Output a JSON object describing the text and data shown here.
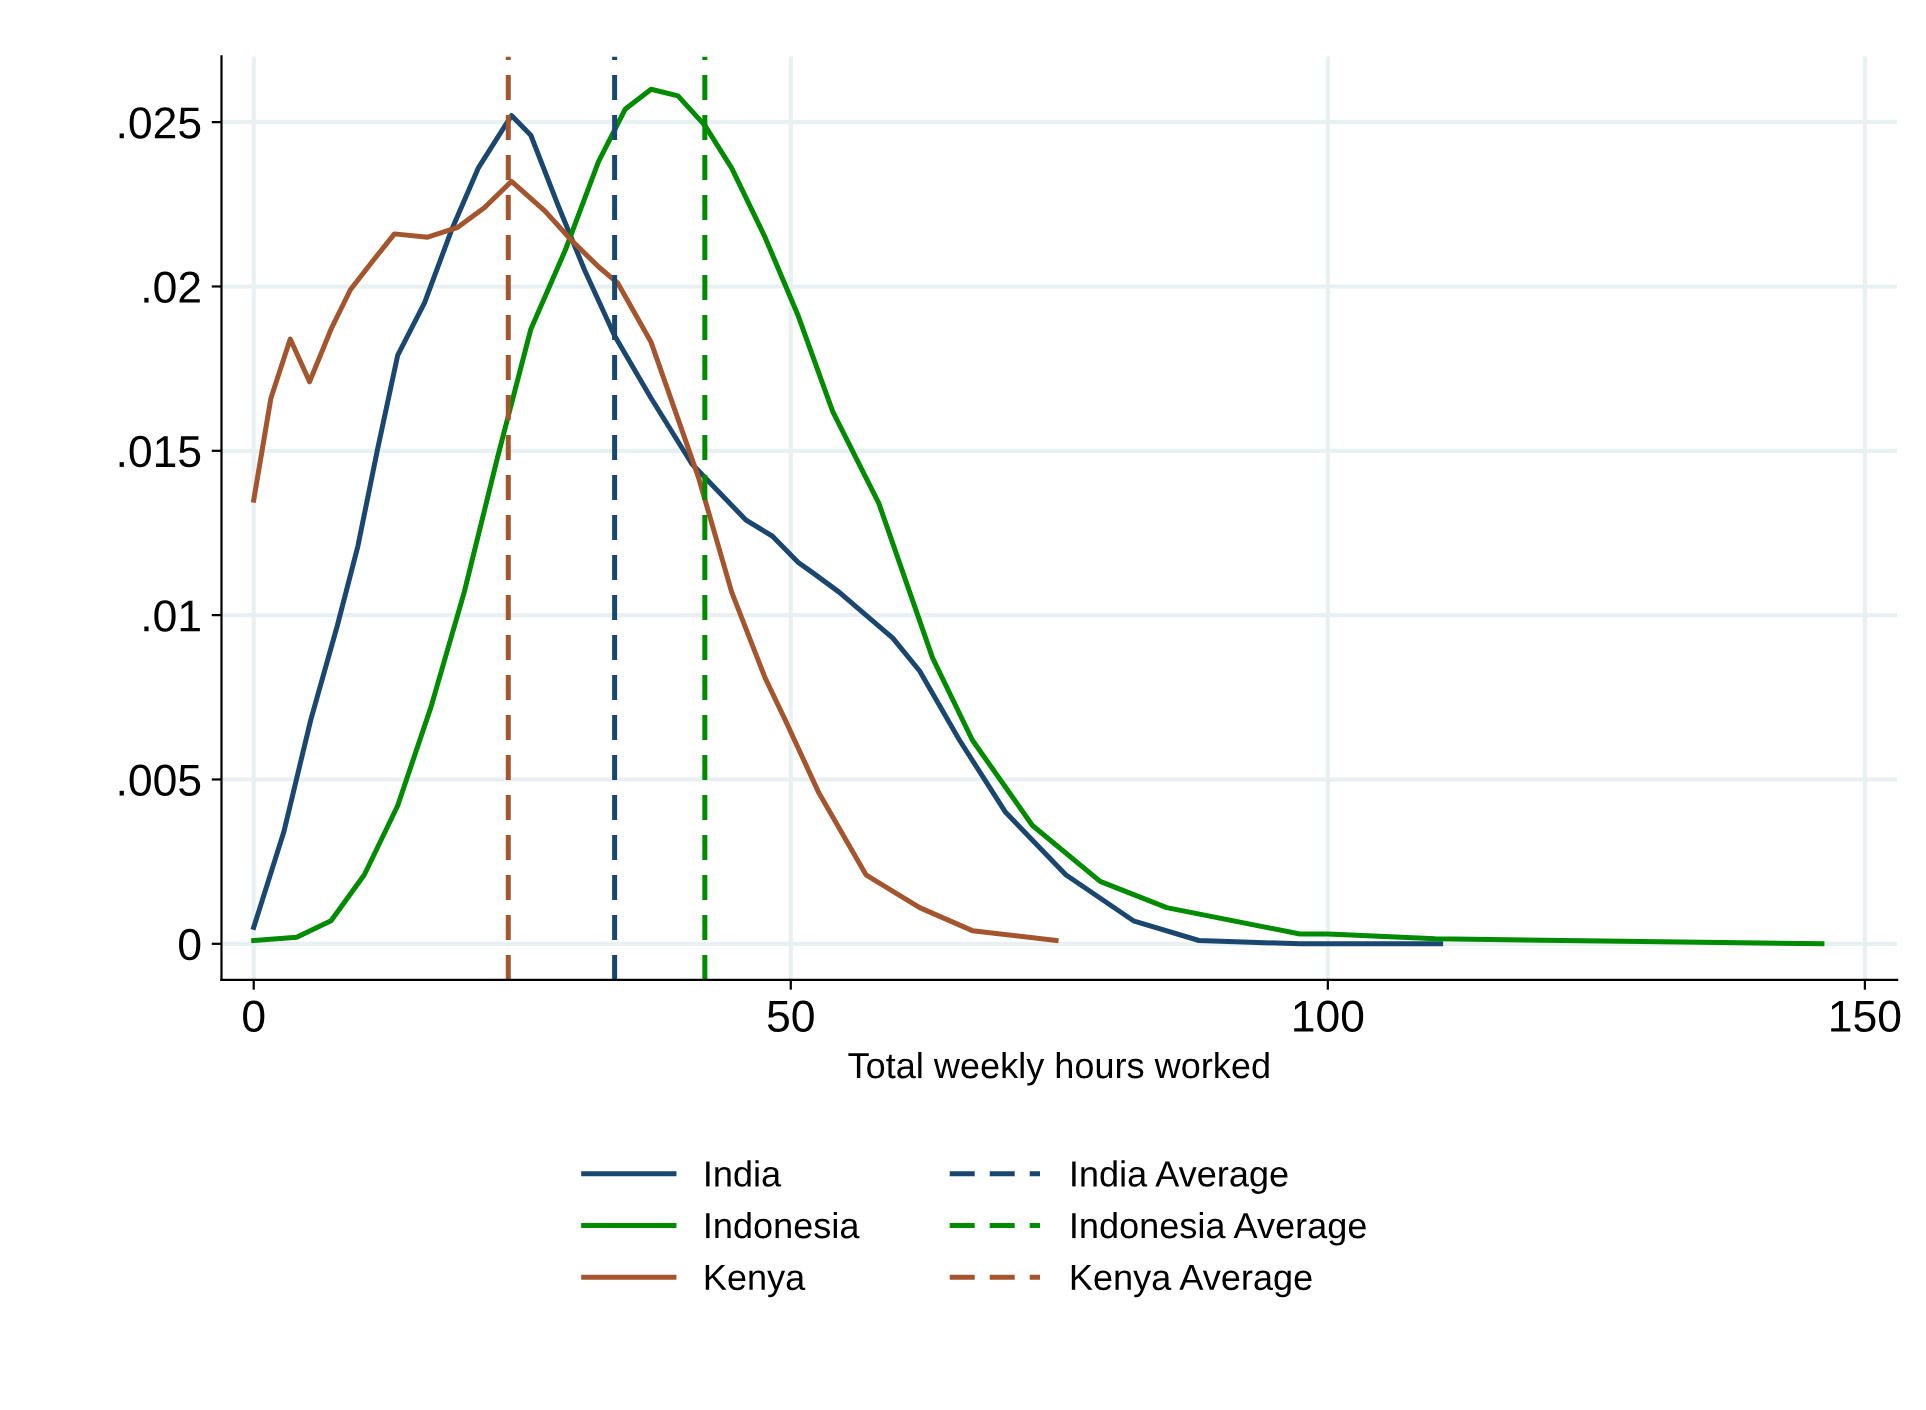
{
  "chart_data": {
    "type": "line",
    "xlabel": "Total weekly hours worked",
    "xlim": [
      -3,
      153
    ],
    "ylim": [
      -0.0011,
      0.027
    ],
    "xticks": [
      0,
      50,
      100,
      150
    ],
    "yticks": [
      {
        "value": 0,
        "label": "0"
      },
      {
        "value": 0.005,
        "label": ".005"
      },
      {
        "value": 0.01,
        "label": ".01"
      },
      {
        "value": 0.015,
        "label": ".015"
      },
      {
        "value": 0.02,
        "label": ".02"
      },
      {
        "value": 0.025,
        "label": ".025"
      }
    ],
    "grid": true,
    "legend": "bottom",
    "line_style": "solid",
    "series": [
      {
        "name": "India",
        "color": "#1a476f",
        "x": [
          0,
          2.8,
          5.3,
          7.8,
          9.7,
          11.5,
          13.4,
          15.9,
          18.4,
          20.9,
          24,
          25.8,
          28.3,
          30.8,
          33.6,
          37,
          40.8,
          45.8,
          48.3,
          50.7,
          52,
          54.5,
          59.5,
          62,
          65.7,
          70,
          75.6,
          81.9,
          88,
          97.4,
          110.5
        ],
        "values": [
          0.0005,
          0.0034,
          0.0068,
          0.0097,
          0.0121,
          0.015,
          0.0179,
          0.0195,
          0.0217,
          0.0236,
          0.0252,
          0.0246,
          0.0225,
          0.0205,
          0.0185,
          0.0166,
          0.0146,
          0.0129,
          0.0124,
          0.0116,
          0.0113,
          0.0107,
          0.0093,
          0.0083,
          0.0062,
          0.004,
          0.0021,
          0.0007,
          0.0001,
          0,
          0
        ]
      },
      {
        "name": "Indonesia",
        "color": "#008b00",
        "x": [
          0,
          4,
          7.2,
          10.3,
          13.4,
          16.5,
          19.6,
          22.7,
          25.8,
          29,
          32.1,
          34.6,
          37,
          39.5,
          42,
          44.5,
          47.6,
          50.7,
          53.9,
          58.2,
          63.2,
          66.9,
          72.5,
          78.8,
          85,
          97.4,
          100,
          110,
          146
        ],
        "values": [
          0.0001,
          0.0002,
          0.0007,
          0.0021,
          0.0042,
          0.0072,
          0.0107,
          0.0148,
          0.0187,
          0.0211,
          0.0238,
          0.0254,
          0.026,
          0.0258,
          0.0249,
          0.0236,
          0.0215,
          0.0191,
          0.0162,
          0.0134,
          0.0087,
          0.0062,
          0.0036,
          0.0019,
          0.0011,
          0.0003,
          0.0003,
          0.00015,
          0
        ]
      },
      {
        "name": "Kenya",
        "color": "#a5552d",
        "x": [
          0,
          1.6,
          3.4,
          5.2,
          7.2,
          9,
          10.9,
          13.1,
          16.2,
          19,
          21.5,
          24,
          27.1,
          29.6,
          32.1,
          33.9,
          37,
          41.4,
          44.5,
          47.6,
          49.5,
          52.6,
          57,
          62,
          66.9,
          74.7
        ],
        "values": [
          0.0135,
          0.0166,
          0.0184,
          0.0171,
          0.0187,
          0.0199,
          0.0207,
          0.0216,
          0.0215,
          0.0218,
          0.0224,
          0.0232,
          0.0223,
          0.0214,
          0.0206,
          0.0201,
          0.0183,
          0.0142,
          0.0107,
          0.0081,
          0.0068,
          0.0046,
          0.0021,
          0.0011,
          0.0004,
          0.0001
        ]
      }
    ],
    "ref_lines": [
      {
        "axis": "x",
        "value": 33.6,
        "label": "India Average",
        "color": "#1a476f",
        "line_style": "dashed"
      },
      {
        "axis": "x",
        "value": 42,
        "label": "Indonesia Average",
        "color": "#008b00",
        "line_style": "dashed"
      },
      {
        "axis": "x",
        "value": 23.7,
        "label": "Kenya Average",
        "color": "#a5552d",
        "line_style": "dashed"
      }
    ]
  }
}
